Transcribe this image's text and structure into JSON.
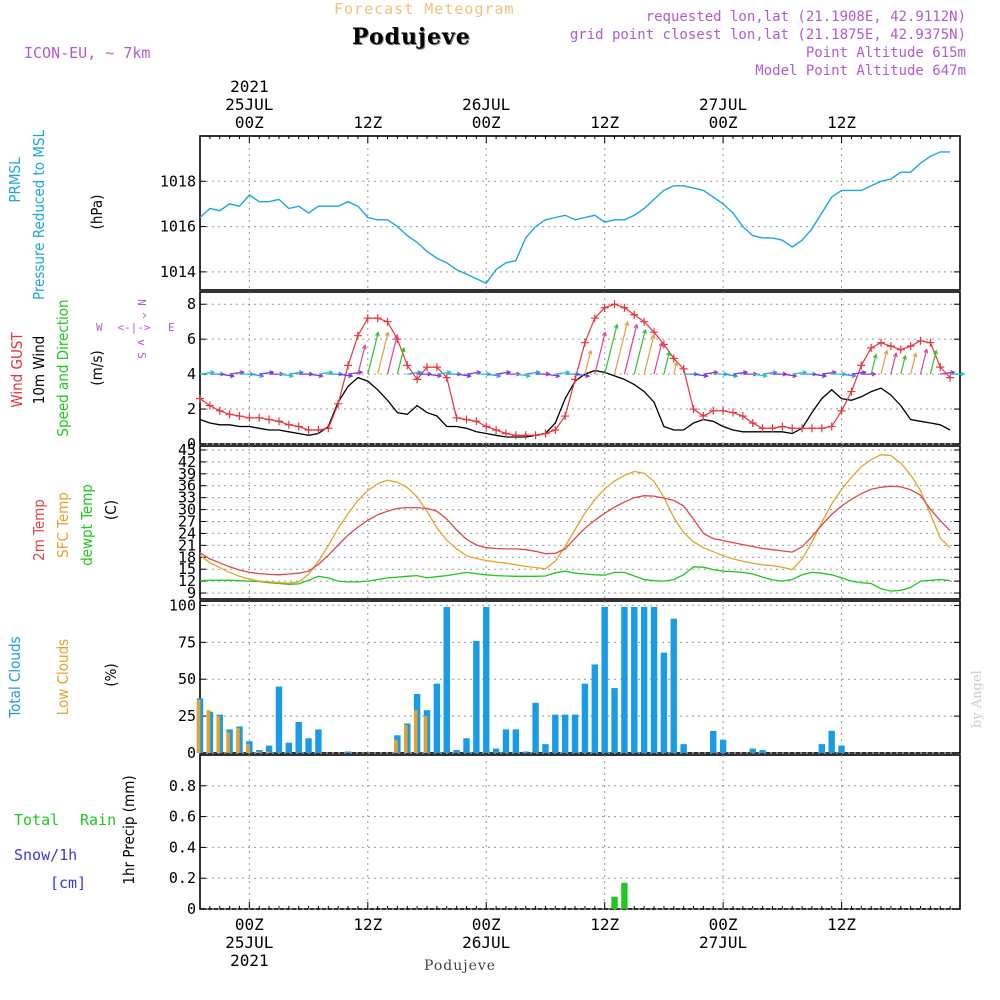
{
  "header": {
    "super_title": "Forecast Meteogram",
    "location": "Podujeve",
    "model": "ICON-EU, ~ 7km",
    "requested": "requested lon,lat (21.1908E, 42.9112N)",
    "closest": "grid point closest lon,lat (21.1875E, 42.9375N)",
    "point_alt": "Point Altitude 615m",
    "model_alt": "Model Point Altitude 647m",
    "footer": "Podujeve",
    "watermark": "by Angel"
  },
  "time_axis": {
    "top": [
      {
        "hour": 0,
        "lines": [
          "2021",
          "25JUL",
          "00Z"
        ]
      },
      {
        "hour": 12,
        "lines": [
          "12Z"
        ]
      },
      {
        "hour": 24,
        "lines": [
          "26JUL",
          "00Z"
        ]
      },
      {
        "hour": 36,
        "lines": [
          "12Z"
        ]
      },
      {
        "hour": 48,
        "lines": [
          "27JUL",
          "00Z"
        ]
      },
      {
        "hour": 60,
        "lines": [
          "12Z"
        ]
      }
    ],
    "bottom": [
      {
        "hour": 0,
        "lines": [
          "00Z",
          "25JUL",
          "2021"
        ]
      },
      {
        "hour": 12,
        "lines": [
          "12Z"
        ]
      },
      {
        "hour": 24,
        "lines": [
          "00Z",
          "26JUL"
        ]
      },
      {
        "hour": 36,
        "lines": [
          "12Z"
        ]
      },
      {
        "hour": 48,
        "lines": [
          "00Z",
          "27JUL"
        ]
      },
      {
        "hour": 60,
        "lines": [
          "12Z"
        ]
      }
    ],
    "x_range_hours": [
      -5,
      72
    ]
  },
  "colors": {
    "pressure": "#1aa6e6",
    "gust": "#e8343a",
    "wind": "#000000",
    "t2m": "#e04848",
    "tsfc": "#e8a22a",
    "dew": "#1ec81e",
    "total_clouds": "#1a9be6",
    "low_clouds": "#e8a22a",
    "rain": "#1ec81e",
    "snow": "#3838e0",
    "purple": "#b05ad8",
    "grid": "#999999"
  },
  "chart_data": [
    {
      "type": "line",
      "name": "pressure",
      "labels": {
        "line1": "PRMSL",
        "line2": "Pressure Reduced to MSL",
        "unit": "(hPa)"
      },
      "ylim": [
        1013.2,
        1020.0
      ],
      "yticks": [
        1014,
        1016,
        1018
      ],
      "x_start": -5,
      "x_step": 1,
      "values": [
        1016.4,
        1016.8,
        1016.7,
        1017.0,
        1016.9,
        1017.4,
        1017.1,
        1017.1,
        1017.2,
        1016.8,
        1016.9,
        1016.6,
        1016.9,
        1016.9,
        1016.9,
        1017.1,
        1016.9,
        1016.4,
        1016.3,
        1016.3,
        1016.0,
        1015.6,
        1015.3,
        1014.9,
        1014.6,
        1014.4,
        1014.1,
        1013.9,
        1013.7,
        1013.5,
        1014.1,
        1014.4,
        1014.5,
        1015.5,
        1016.0,
        1016.3,
        1016.4,
        1016.5,
        1016.3,
        1016.4,
        1016.5,
        1016.2,
        1016.3,
        1016.3,
        1016.5,
        1016.8,
        1017.2,
        1017.6,
        1017.8,
        1017.8,
        1017.7,
        1017.6,
        1017.3,
        1017.0,
        1016.6,
        1016.0,
        1015.6,
        1015.5,
        1015.5,
        1015.4,
        1015.1,
        1015.4,
        1015.9,
        1016.6,
        1017.3,
        1017.6,
        1017.6,
        1017.6,
        1017.8,
        1018.0,
        1018.1,
        1018.4,
        1018.4,
        1018.8,
        1019.1,
        1019.3,
        1019.3
      ]
    },
    {
      "type": "line",
      "name": "wind",
      "labels": {
        "gust": "Wind GUST",
        "wind": "10m Wind",
        "speed": "Speed and Direction",
        "unit": "(m/s)",
        "compass_n": "N",
        "compass_s": "S",
        "compass_w": "W",
        "compass_e": "E",
        "compass_axis": "<-|->",
        "compass_v_top": "^",
        "compass_v_mid": "|",
        "compass_v_bot": "v"
      },
      "ylim": [
        0,
        8.7
      ],
      "yticks": [
        0,
        2,
        4,
        6,
        8
      ],
      "x_start": -5,
      "x_step": 1,
      "gust": [
        2.6,
        2.2,
        1.9,
        1.7,
        1.6,
        1.5,
        1.5,
        1.4,
        1.3,
        1.1,
        1.0,
        0.8,
        0.8,
        0.9,
        2.3,
        4.5,
        6.2,
        7.2,
        7.2,
        7.0,
        6.0,
        4.5,
        3.7,
        4.4,
        4.4,
        3.8,
        1.5,
        1.4,
        1.3,
        1.0,
        0.8,
        0.6,
        0.5,
        0.5,
        0.5,
        0.6,
        0.8,
        1.6,
        3.7,
        5.8,
        7.2,
        7.8,
        8.0,
        7.8,
        7.4,
        7.0,
        6.4,
        5.7,
        4.9,
        4.3,
        2.0,
        1.6,
        1.9,
        1.9,
        1.8,
        1.6,
        1.2,
        0.9,
        0.9,
        1.0,
        0.9,
        0.9,
        0.9,
        0.9,
        1.0,
        1.9,
        3.0,
        4.5,
        5.5,
        5.8,
        5.6,
        5.4,
        5.6,
        5.9,
        5.8,
        4.4,
        3.8
      ],
      "wind": [
        1.4,
        1.2,
        1.1,
        1.1,
        1.0,
        1.0,
        0.9,
        0.8,
        0.8,
        0.7,
        0.6,
        0.5,
        0.6,
        1.0,
        2.4,
        3.3,
        3.8,
        3.6,
        3.1,
        2.5,
        1.8,
        1.7,
        2.2,
        1.8,
        1.6,
        1.0,
        1.0,
        0.9,
        0.7,
        0.6,
        0.5,
        0.4,
        0.4,
        0.4,
        0.5,
        0.6,
        1.2,
        2.6,
        3.6,
        4.0,
        4.2,
        4.1,
        3.9,
        3.7,
        3.4,
        3.0,
        2.4,
        1.0,
        0.8,
        0.8,
        1.2,
        1.4,
        1.3,
        1.0,
        0.8,
        0.7,
        0.7,
        0.7,
        0.7,
        0.7,
        0.6,
        0.9,
        1.8,
        2.6,
        3.1,
        2.6,
        2.5,
        2.7,
        3.0,
        3.2,
        2.8,
        2.2,
        1.4,
        1.3,
        1.2,
        1.1,
        0.8
      ]
    },
    {
      "type": "line",
      "name": "temperature",
      "labels": {
        "t2m": "2m Temp",
        "tsfc": "SFC Temp",
        "dew": "dewpt Temp",
        "unit": "(C)"
      },
      "ylim": [
        7.5,
        46
      ],
      "yticks": [
        9,
        12,
        15,
        18,
        21,
        24,
        27,
        30,
        33,
        36,
        39,
        42,
        45
      ],
      "x_start": -5,
      "x_step": 1,
      "t2m": [
        19.1,
        17.6,
        16.6,
        15.6,
        14.8,
        14.2,
        13.9,
        13.7,
        13.6,
        13.8,
        14.0,
        14.5,
        16.2,
        18.5,
        21.1,
        23.6,
        25.6,
        27.3,
        28.7,
        29.6,
        30.3,
        30.5,
        30.5,
        30.3,
        29.6,
        27.6,
        24.9,
        22.5,
        21.1,
        20.4,
        20.2,
        20.1,
        20.1,
        19.9,
        19.5,
        18.9,
        19.0,
        20.1,
        22.8,
        25.3,
        27.3,
        29.1,
        30.6,
        31.9,
        33.0,
        33.5,
        33.4,
        32.9,
        32.3,
        30.9,
        27.6,
        24.0,
        22.7,
        22.2,
        21.7,
        21.2,
        20.7,
        20.2,
        19.9,
        19.6,
        19.3,
        20.6,
        23.2,
        26.1,
        28.8,
        30.9,
        32.6,
        34.0,
        35.1,
        35.6,
        35.9,
        35.7,
        35.0,
        33.6,
        30.1,
        27.2,
        24.7
      ],
      "tsfc": [
        18.5,
        16.6,
        15.4,
        14.2,
        13.2,
        12.5,
        12.0,
        11.8,
        11.6,
        11.5,
        11.8,
        13.7,
        17.0,
        20.9,
        25.3,
        29.0,
        32.3,
        34.8,
        36.5,
        37.4,
        36.9,
        35.5,
        33.2,
        29.6,
        25.4,
        22.3,
        20.1,
        18.4,
        17.7,
        17.2,
        16.8,
        16.5,
        16.1,
        15.7,
        15.4,
        15.1,
        17.0,
        20.8,
        25.0,
        29.1,
        32.5,
        35.2,
        37.2,
        38.6,
        39.6,
        39.1,
        37.1,
        33.1,
        28.0,
        24.2,
        21.9,
        20.4,
        19.4,
        18.4,
        17.6,
        17.0,
        16.5,
        16.1,
        15.9,
        15.5,
        14.9,
        17.6,
        21.8,
        26.8,
        31.4,
        35.1,
        38.1,
        40.8,
        42.6,
        43.8,
        43.6,
        41.7,
        38.7,
        34.8,
        28.9,
        22.8,
        20.4
      ],
      "dew": [
        12.1,
        12.2,
        12.2,
        12.2,
        12.1,
        12.0,
        11.9,
        11.6,
        11.4,
        11.2,
        11.3,
        12.2,
        13.2,
        12.8,
        12.0,
        11.8,
        11.8,
        12.0,
        12.4,
        12.8,
        13.0,
        13.2,
        13.4,
        12.8,
        13.1,
        13.4,
        13.8,
        14.2,
        13.9,
        13.6,
        13.4,
        13.3,
        13.2,
        13.2,
        13.2,
        13.3,
        14.1,
        14.5,
        14.0,
        13.8,
        13.6,
        13.5,
        14.2,
        14.2,
        13.3,
        12.4,
        12.1,
        12.0,
        12.4,
        13.6,
        15.6,
        15.5,
        14.9,
        14.5,
        14.4,
        14.2,
        13.8,
        13.0,
        12.3,
        12.0,
        12.4,
        13.6,
        14.2,
        14.0,
        13.6,
        12.8,
        12.0,
        11.6,
        11.4,
        10.1,
        9.5,
        9.7,
        10.4,
        12.0,
        12.2,
        12.4,
        12.1
      ]
    },
    {
      "type": "bar",
      "name": "clouds",
      "labels": {
        "total": "Total Clouds",
        "low": "Low Clouds",
        "unit": "(%)"
      },
      "ylim": [
        0,
        103
      ],
      "yticks": [
        0,
        25,
        50,
        75,
        100
      ],
      "x_start": -5,
      "x_step": 1,
      "total": [
        37,
        28,
        26,
        16,
        18,
        8,
        2,
        5,
        45,
        7,
        21,
        10,
        16,
        0,
        0,
        1,
        0,
        0,
        0,
        0,
        12,
        20,
        40,
        29,
        47,
        99,
        2,
        10,
        76,
        99,
        3,
        16,
        16,
        1,
        34,
        6,
        26,
        26,
        26,
        47,
        60,
        99,
        44,
        99,
        99,
        99,
        99,
        68,
        91,
        6,
        0,
        0,
        15,
        9,
        0,
        0,
        3,
        2,
        0,
        0,
        0,
        0,
        0,
        6,
        15,
        5,
        0,
        0,
        0,
        0,
        0,
        0,
        0,
        0,
        0,
        0,
        0
      ],
      "low": [
        36,
        29,
        25,
        14,
        17,
        6,
        1,
        1,
        0,
        0,
        0,
        0,
        0,
        0,
        0,
        0,
        0,
        0,
        0,
        0,
        9,
        19,
        29,
        25,
        0,
        0,
        0,
        0,
        0,
        0,
        0,
        0,
        0,
        0,
        0,
        0,
        0,
        0,
        0,
        0,
        0,
        0,
        0,
        0,
        0,
        0,
        0,
        0,
        0,
        0,
        0,
        0,
        0,
        0,
        0,
        0,
        0,
        0,
        0,
        0,
        0,
        0,
        0,
        0,
        0,
        0,
        0,
        0,
        0,
        0,
        0,
        0,
        0,
        0,
        0,
        0,
        0
      ]
    },
    {
      "type": "bar",
      "name": "precipitation",
      "labels": {
        "total": "Total",
        "rain": "Rain",
        "snow": "Snow/1h",
        "cm": "[cm]",
        "axis": "1hr Precip (mm)"
      },
      "ylim": [
        0,
        1.0
      ],
      "yticks": [
        0,
        0.2,
        0.4,
        0.6,
        0.8
      ],
      "ytick_labels": [
        "0",
        "0.2",
        "0.4",
        "0.6",
        "0.8"
      ],
      "bars": [
        {
          "x": 37,
          "value": 0.08
        },
        {
          "x": 38,
          "value": 0.17
        }
      ]
    }
  ]
}
